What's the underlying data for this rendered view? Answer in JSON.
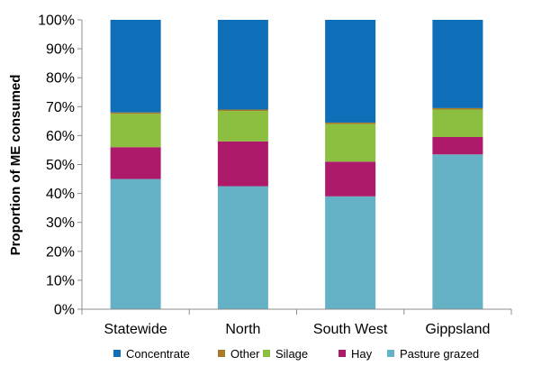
{
  "chart_data": {
    "type": "bar",
    "stacked": true,
    "categories": [
      "Statewide",
      "North",
      "South West",
      "Gippsland"
    ],
    "ylabel": "Proportion of ME consumed",
    "ylim": [
      0,
      100
    ],
    "yticks": [
      "0%",
      "10%",
      "20%",
      "30%",
      "40%",
      "50%",
      "60%",
      "70%",
      "80%",
      "90%",
      "100%"
    ],
    "legend_position": "bottom",
    "grid": false,
    "series": [
      {
        "name": "Pasture grazed",
        "color": "#65B1C6",
        "values": [
          45,
          42.5,
          39,
          53.5
        ]
      },
      {
        "name": "Hay",
        "color": "#AE1A6A",
        "values": [
          11,
          15.5,
          12,
          6
        ]
      },
      {
        "name": "Silage",
        "color": "#8CBF3F",
        "values": [
          11.5,
          10.5,
          13,
          9.5
        ]
      },
      {
        "name": "Other",
        "color": "#A67C2A",
        "values": [
          0.5,
          0.5,
          0.5,
          0.5
        ]
      },
      {
        "name": "Concentrate",
        "color": "#0E6EB8",
        "values": [
          32,
          31,
          35.5,
          30.5
        ]
      }
    ],
    "legend_order": [
      "Concentrate",
      "Other",
      "Silage",
      "Hay",
      "Pasture grazed"
    ]
  }
}
